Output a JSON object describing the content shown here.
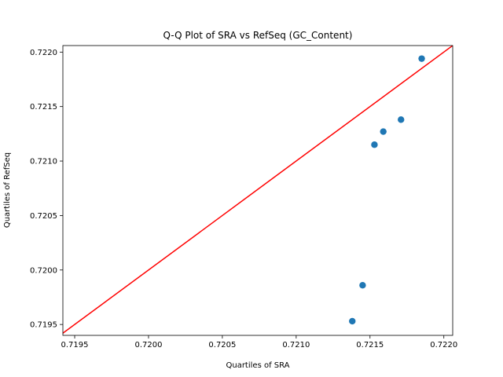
{
  "chart_data": {
    "type": "scatter",
    "title": "Q-Q Plot of SRA vs RefSeq (GC_Content)",
    "xlabel": "Quartiles of SRA",
    "ylabel": "Quartiles of RefSeq",
    "xlim": [
      0.71942,
      0.72206
    ],
    "ylim": [
      0.7194,
      0.72206
    ],
    "xticks": [
      "0.7195",
      "0.7200",
      "0.7205",
      "0.7210",
      "0.7215",
      "0.7220"
    ],
    "yticks": [
      "0.7195",
      "0.7200",
      "0.7205",
      "0.7210",
      "0.7215",
      "0.7220"
    ],
    "grid": false,
    "points": [
      {
        "x": 0.72138,
        "y": 0.71953
      },
      {
        "x": 0.72145,
        "y": 0.71986
      },
      {
        "x": 0.72153,
        "y": 0.72115
      },
      {
        "x": 0.72159,
        "y": 0.72127
      },
      {
        "x": 0.72171,
        "y": 0.72138
      },
      {
        "x": 0.72185,
        "y": 0.72194
      }
    ],
    "reference_line": {
      "type": "y=x",
      "color": "#ff0000"
    },
    "marker_color": "#1f77b4"
  }
}
